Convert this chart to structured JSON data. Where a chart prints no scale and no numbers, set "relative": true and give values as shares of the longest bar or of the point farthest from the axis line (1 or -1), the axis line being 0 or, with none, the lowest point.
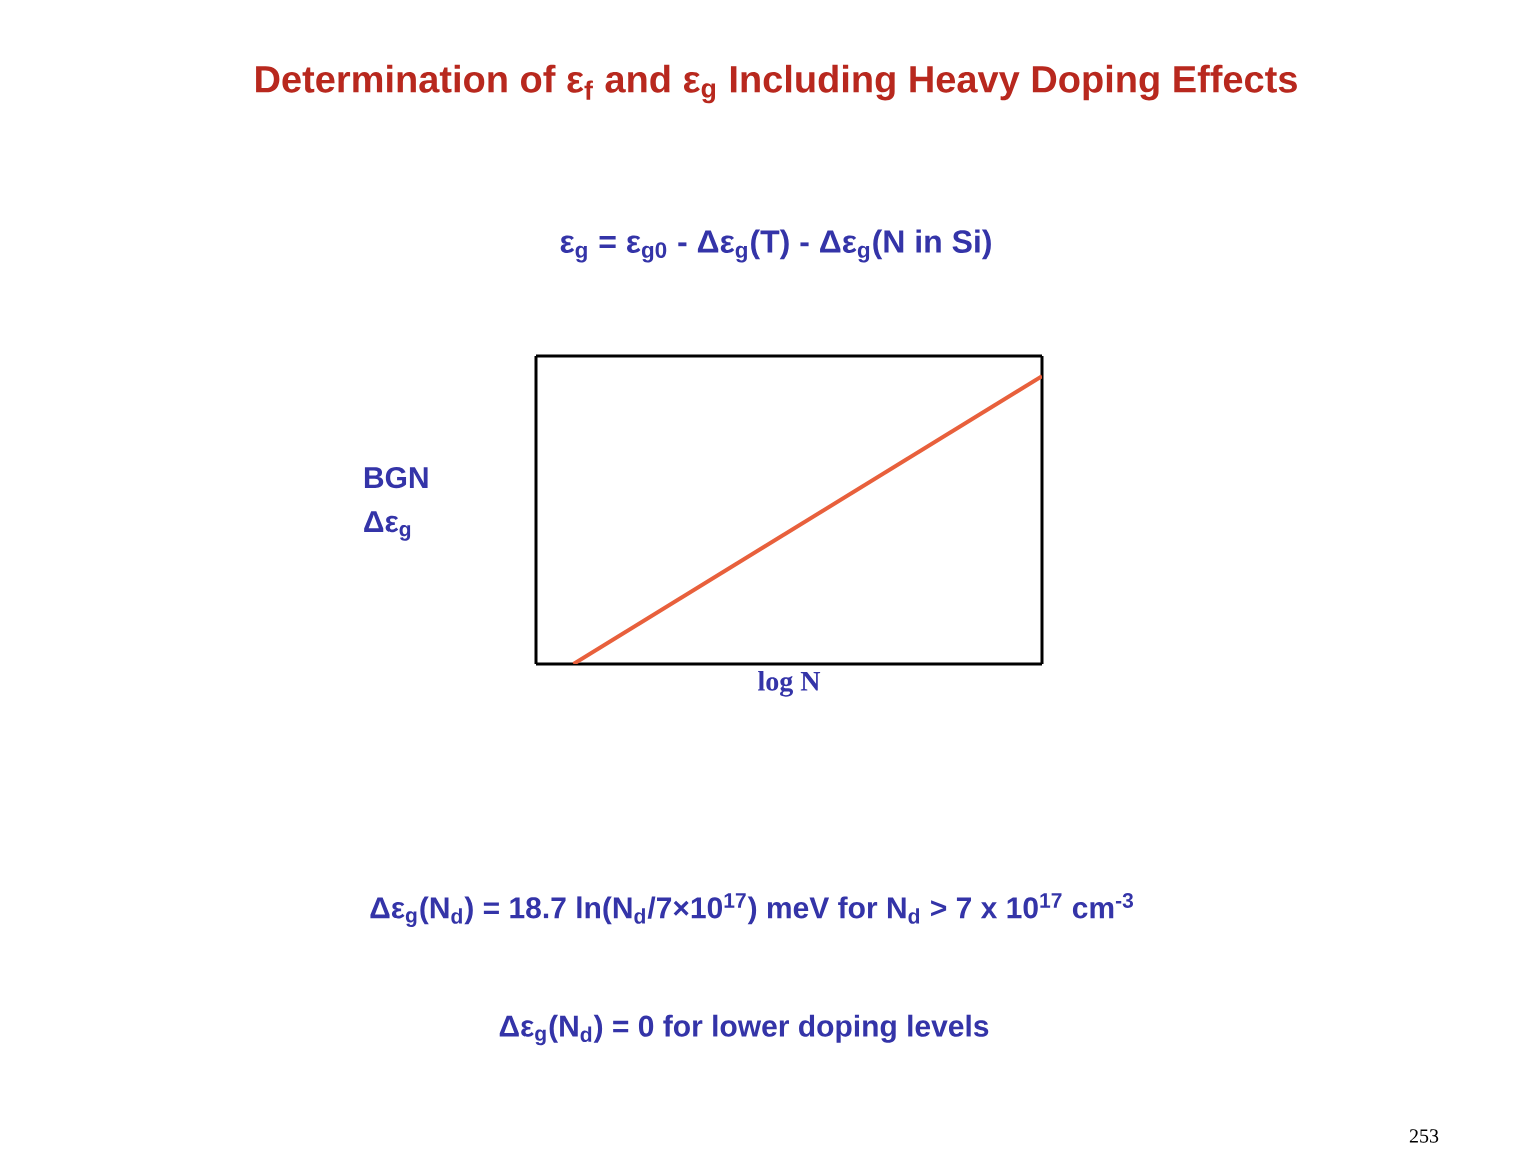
{
  "chart_data": {
    "type": "line",
    "title": "Determination of ε$_{f}$ and ε$_{g}$ Including Heavy Doping Effects",
    "xlabel": "log N",
    "ylabel": "BGN Δε$_{g}$",
    "categories": [
      null,
      null
    ],
    "values": [
      0,
      1
    ],
    "relative": true,
    "color": "#e8603c",
    "annotations": [
      "ε$_{g}$ = ε$_{g0}$ - Δε$_{g}$(T) - Δε$_{g}$(N in Si)",
      "Δε$_{g}$(N$_{d}$) = 18.7 ln(N$_{d}$/7×10$^{17}$)  meV  for N$_{d}$ > 7 x 10$^{17}$ cm$^{-3}$",
      "Δε$_{g}$(N$_{d}$) = 0  for lower doping levels",
      "253"
    ]
  }
}
